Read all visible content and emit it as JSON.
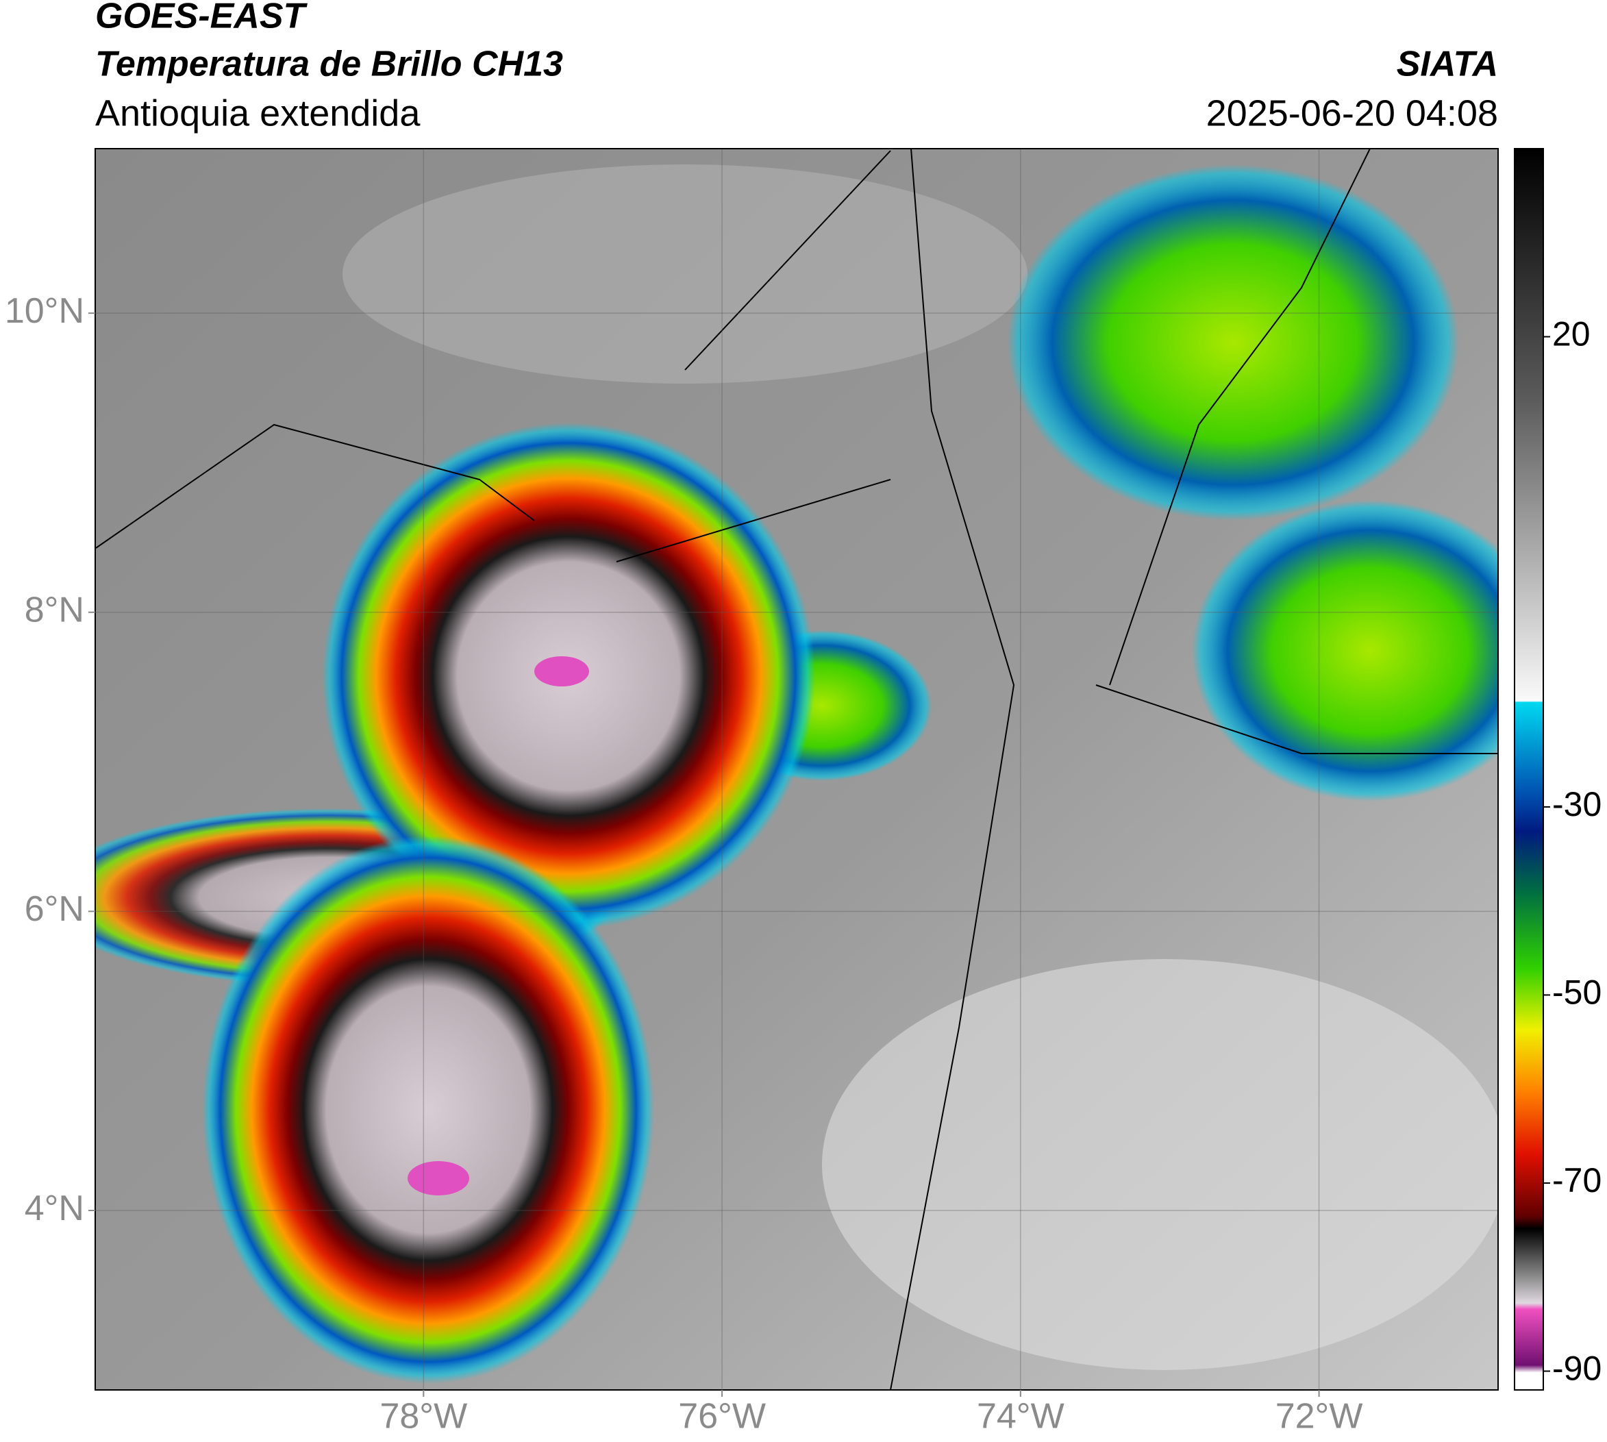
{
  "header": {
    "title": "GOES-EAST",
    "subtitle": "Temperatura de Brillo CH13",
    "region": "Antioquia extendida",
    "source": "SIATA",
    "datetime": "2025-06-20 04:08"
  },
  "map": {
    "xlim": [
      -80.2,
      -70.8
    ],
    "ylim": [
      2.8,
      11.1
    ],
    "xticks": [
      {
        "value": -78,
        "label": "78°W"
      },
      {
        "value": -76,
        "label": "76°W"
      },
      {
        "value": -74,
        "label": "74°W"
      },
      {
        "value": -72,
        "label": "72°W"
      }
    ],
    "yticks": [
      {
        "value": 4,
        "label": "4°N"
      },
      {
        "value": 6,
        "label": "6°N"
      },
      {
        "value": 8,
        "label": "8°N"
      },
      {
        "value": 10,
        "label": "10°N"
      }
    ],
    "grid": true
  },
  "colorbar": {
    "lim": [
      -92,
      40
    ],
    "ticks": [
      20,
      -30,
      -50,
      -70,
      -90
    ]
  }
}
